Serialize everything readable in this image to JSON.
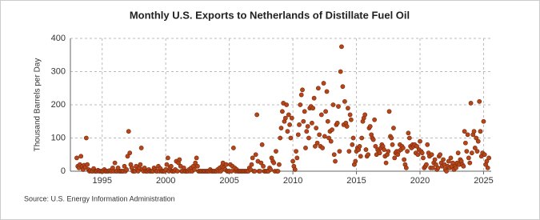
{
  "chart_data": {
    "type": "scatter",
    "title": "Monthly U.S. Exports to Netherlands of Distillate Fuel Oil",
    "y_label": "Thousand Barrels per Day",
    "source": "Source: U.S. Energy Information Administration",
    "color": "#b5451b",
    "grid": true,
    "xlim": [
      1992.5,
      2025.6
    ],
    "xticks": [
      1995,
      2000,
      2005,
      2010,
      2015,
      2020,
      2025
    ],
    "ylim": [
      0,
      400
    ],
    "yticks": [
      0,
      100,
      200,
      300,
      400
    ],
    "x": [
      1993,
      1993.08,
      1993.17,
      1993.25,
      1993.33,
      1993.42,
      1993.5,
      1993.58,
      1993.67,
      1993.75,
      1993.83,
      1993.92,
      1994,
      1994.08,
      1994.17,
      1994.25,
      1994.33,
      1994.42,
      1994.5,
      1994.58,
      1994.67,
      1994.75,
      1994.83,
      1994.92,
      1995,
      1995.08,
      1995.17,
      1995.25,
      1995.33,
      1995.42,
      1995.5,
      1995.58,
      1995.67,
      1995.75,
      1995.83,
      1995.92,
      1996,
      1996.08,
      1996.17,
      1996.25,
      1996.33,
      1996.42,
      1996.5,
      1996.58,
      1996.67,
      1996.75,
      1996.83,
      1996.92,
      1997,
      1997.08,
      1997.17,
      1997.25,
      1997.33,
      1997.42,
      1997.5,
      1997.58,
      1997.67,
      1997.75,
      1997.83,
      1997.92,
      1998,
      1998.08,
      1998.17,
      1998.25,
      1998.33,
      1998.42,
      1998.5,
      1998.58,
      1998.67,
      1998.75,
      1998.83,
      1998.92,
      1999,
      1999.08,
      1999.17,
      1999.25,
      1999.33,
      1999.42,
      1999.5,
      1999.58,
      1999.67,
      1999.75,
      1999.83,
      1999.92,
      2000,
      2000.08,
      2000.17,
      2000.25,
      2000.33,
      2000.42,
      2000.5,
      2000.58,
      2000.67,
      2000.75,
      2000.83,
      2000.92,
      2001,
      2001.08,
      2001.17,
      2001.25,
      2001.33,
      2001.42,
      2001.5,
      2001.58,
      2001.67,
      2001.75,
      2001.83,
      2001.92,
      2002,
      2002.08,
      2002.17,
      2002.25,
      2002.33,
      2002.42,
      2002.5,
      2002.58,
      2002.67,
      2002.75,
      2002.83,
      2002.92,
      2003,
      2003.08,
      2003.17,
      2003.25,
      2003.33,
      2003.42,
      2003.5,
      2003.58,
      2003.67,
      2003.75,
      2003.83,
      2003.92,
      2004,
      2004.08,
      2004.17,
      2004.25,
      2004.33,
      2004.42,
      2004.5,
      2004.58,
      2004.67,
      2004.75,
      2004.83,
      2004.92,
      2005,
      2005.08,
      2005.17,
      2005.25,
      2005.33,
      2005.42,
      2005.5,
      2005.58,
      2005.67,
      2005.75,
      2005.83,
      2005.92,
      2006,
      2006.08,
      2006.17,
      2006.25,
      2006.33,
      2006.42,
      2006.5,
      2006.58,
      2006.67,
      2006.75,
      2006.83,
      2006.92,
      2007,
      2007.08,
      2007.17,
      2007.25,
      2007.33,
      2007.42,
      2007.5,
      2007.58,
      2007.67,
      2007.75,
      2007.83,
      2007.92,
      2008,
      2008.08,
      2008.17,
      2008.25,
      2008.33,
      2008.42,
      2008.5,
      2008.58,
      2008.67,
      2008.75,
      2008.83,
      2008.92,
      2009,
      2009.08,
      2009.17,
      2009.25,
      2009.33,
      2009.42,
      2009.5,
      2009.58,
      2009.67,
      2009.75,
      2009.83,
      2009.92,
      2010,
      2010.08,
      2010.17,
      2010.25,
      2010.33,
      2010.42,
      2010.5,
      2010.58,
      2010.67,
      2010.75,
      2010.83,
      2010.92,
      2011,
      2011.08,
      2011.17,
      2011.25,
      2011.33,
      2011.42,
      2011.5,
      2011.58,
      2011.67,
      2011.75,
      2011.83,
      2011.92,
      2012,
      2012.08,
      2012.17,
      2012.25,
      2012.33,
      2012.42,
      2012.5,
      2012.58,
      2012.67,
      2012.75,
      2012.83,
      2012.92,
      2013,
      2013.08,
      2013.17,
      2013.25,
      2013.33,
      2013.42,
      2013.5,
      2013.58,
      2013.67,
      2013.75,
      2013.83,
      2013.92,
      2014,
      2014.08,
      2014.17,
      2014.25,
      2014.33,
      2014.42,
      2014.5,
      2014.58,
      2014.67,
      2014.75,
      2014.83,
      2014.92,
      2015,
      2015.08,
      2015.17,
      2015.25,
      2015.33,
      2015.42,
      2015.5,
      2015.58,
      2015.67,
      2015.75,
      2015.83,
      2015.92,
      2016,
      2016.08,
      2016.17,
      2016.25,
      2016.33,
      2016.42,
      2016.5,
      2016.58,
      2016.67,
      2016.75,
      2016.83,
      2016.92,
      2017,
      2017.08,
      2017.17,
      2017.25,
      2017.33,
      2017.42,
      2017.5,
      2017.58,
      2017.67,
      2017.75,
      2017.83,
      2017.92,
      2018,
      2018.08,
      2018.17,
      2018.25,
      2018.33,
      2018.42,
      2018.5,
      2018.58,
      2018.67,
      2018.75,
      2018.83,
      2018.92,
      2019,
      2019.08,
      2019.17,
      2019.25,
      2019.33,
      2019.42,
      2019.5,
      2019.58,
      2019.67,
      2019.75,
      2019.83,
      2019.92,
      2020,
      2020.08,
      2020.17,
      2020.25,
      2020.33,
      2020.42,
      2020.5,
      2020.58,
      2020.67,
      2020.75,
      2020.83,
      2020.92,
      2021,
      2021.08,
      2021.17,
      2021.25,
      2021.33,
      2021.42,
      2021.5,
      2021.58,
      2021.67,
      2021.75,
      2021.83,
      2021.92,
      2022,
      2022.08,
      2022.17,
      2022.25,
      2022.33,
      2022.42,
      2022.5,
      2022.58,
      2022.67,
      2022.75,
      2022.83,
      2022.92,
      2023,
      2023.08,
      2023.17,
      2023.25,
      2023.33,
      2023.42,
      2023.5,
      2023.58,
      2023.67,
      2023.75,
      2023.83,
      2023.92,
      2024,
      2024.08,
      2024.17,
      2024.25,
      2024.33,
      2024.42,
      2024.5,
      2024.58,
      2024.67,
      2024.75,
      2024.83,
      2024.92,
      2025,
      2025.08,
      2025.17,
      2025.25,
      2025.33,
      2025.42
    ],
    "values": [
      40,
      15,
      10,
      20,
      45,
      15,
      5,
      18,
      12,
      100,
      20,
      5,
      0,
      2,
      0,
      0,
      8,
      0,
      0,
      0,
      3,
      0,
      0,
      0,
      0,
      0,
      5,
      0,
      0,
      0,
      0,
      2,
      0,
      0,
      10,
      0,
      25,
      0,
      0,
      10,
      0,
      0,
      0,
      0,
      0,
      15,
      0,
      5,
      45,
      120,
      55,
      20,
      10,
      0,
      0,
      0,
      15,
      5,
      0,
      10,
      20,
      70,
      5,
      0,
      10,
      0,
      0,
      0,
      5,
      0,
      0,
      0,
      0,
      10,
      5,
      0,
      0,
      15,
      0,
      8,
      0,
      0,
      0,
      0,
      5,
      20,
      40,
      0,
      10,
      15,
      0,
      0,
      0,
      5,
      30,
      0,
      25,
      35,
      15,
      0,
      0,
      10,
      0,
      0,
      0,
      0,
      5,
      0,
      10,
      0,
      15,
      5,
      25,
      40,
      15,
      0,
      0,
      0,
      0,
      0,
      0,
      0,
      0,
      0,
      0,
      0,
      5,
      0,
      0,
      0,
      0,
      0,
      0,
      5,
      0,
      10,
      0,
      15,
      25,
      10,
      5,
      20,
      0,
      0,
      0,
      20,
      0,
      15,
      70,
      10,
      0,
      5,
      0,
      0,
      0,
      0,
      0,
      0,
      0,
      0,
      0,
      0,
      0,
      10,
      5,
      20,
      40,
      0,
      0,
      50,
      170,
      30,
      0,
      0,
      25,
      80,
      15,
      0,
      0,
      0,
      0,
      0,
      10,
      5,
      40,
      30,
      25,
      0,
      60,
      0,
      0,
      20,
      100,
      130,
      180,
      205,
      150,
      160,
      200,
      120,
      170,
      140,
      100,
      160,
      30,
      15,
      5,
      60,
      40,
      110,
      140,
      200,
      230,
      245,
      150,
      180,
      70,
      120,
      135,
      100,
      190,
      195,
      145,
      190,
      220,
      75,
      130,
      85,
      250,
      110,
      75,
      170,
      70,
      265,
      105,
      180,
      240,
      150,
      100,
      120,
      90,
      125,
      200,
      50,
      30,
      140,
      145,
      195,
      60,
      300,
      375,
      255,
      140,
      210,
      145,
      135,
      190,
      60,
      170,
      155,
      80,
      100,
      20,
      30,
      60,
      70,
      65,
      75,
      45,
      100,
      150,
      160,
      170,
      65,
      45,
      50,
      130,
      135,
      110,
      100,
      95,
      155,
      75,
      50,
      65,
      60,
      55,
      70,
      80,
      75,
      65,
      45,
      25,
      50,
      60,
      180,
      105,
      100,
      80,
      130,
      40,
      55,
      60,
      50,
      60,
      80,
      65,
      75,
      70,
      35,
      20,
      10,
      60,
      115,
      100,
      75,
      70,
      80,
      75,
      80,
      55,
      75,
      50,
      65,
      90,
      60,
      55,
      40,
      10,
      15,
      20,
      80,
      55,
      45,
      10,
      50,
      10,
      25,
      35,
      20,
      5,
      10,
      45,
      50,
      25,
      15,
      35,
      20,
      5,
      0,
      15,
      30,
      10,
      40,
      15,
      25,
      5,
      15,
      10,
      25,
      55,
      20,
      35,
      30,
      20,
      15,
      120,
      85,
      60,
      110,
      40,
      25,
      205,
      55,
      110,
      120,
      70,
      100,
      60,
      90,
      210,
      120,
      45,
      55,
      150,
      50,
      20,
      30,
      10,
      40
    ]
  }
}
